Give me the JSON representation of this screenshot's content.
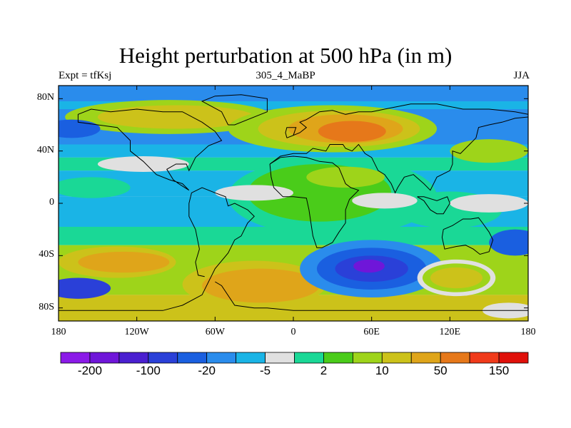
{
  "chart_data": {
    "type": "map-contour",
    "title": "Height perturbation at 500 hPa (in m)",
    "left_label": "Expt = tfKsj",
    "center_label": "305_4_MaBP",
    "right_label": "JJA",
    "lon_range": [
      -180,
      180
    ],
    "lat_range": [
      -90,
      90
    ],
    "x_ticks": [
      {
        "value": -180,
        "label": "180"
      },
      {
        "value": -120,
        "label": "120W"
      },
      {
        "value": -60,
        "label": "60W"
      },
      {
        "value": 0,
        "label": "0"
      },
      {
        "value": 60,
        "label": "60E"
      },
      {
        "value": 120,
        "label": "120E"
      },
      {
        "value": 180,
        "label": "180"
      }
    ],
    "y_ticks": [
      {
        "value": 80,
        "label": "80N"
      },
      {
        "value": 40,
        "label": "40N"
      },
      {
        "value": 0,
        "label": "0"
      },
      {
        "value": -40,
        "label": "40S"
      },
      {
        "value": -80,
        "label": "80S"
      }
    ],
    "colorbar": {
      "colors": [
        "#8b1ae8",
        "#6f16d9",
        "#4a1fd0",
        "#2a40d8",
        "#1a5fe0",
        "#2a8cec",
        "#1ab4e6",
        "#e0e0e0",
        "#1ad896",
        "#4acc1a",
        "#9ed41a",
        "#ccc21a",
        "#dfa51a",
        "#e6781a",
        "#f03a1a",
        "#e0100a"
      ],
      "labels": [
        {
          "after_index": 0,
          "text": "-200"
        },
        {
          "after_index": 2,
          "text": "-100"
        },
        {
          "after_index": 4,
          "text": "-20"
        },
        {
          "after_index": 6,
          "text": "-5"
        },
        {
          "after_index": 8,
          "text": "2"
        },
        {
          "after_index": 10,
          "text": "10"
        },
        {
          "after_index": 12,
          "text": "50"
        },
        {
          "after_index": 14,
          "text": "150"
        }
      ]
    },
    "background_color": "#e0e0e0",
    "anomaly_bands": [
      {
        "lat_from": 90,
        "lat_to": 78,
        "color": "#2a8cec"
      },
      {
        "lat_from": 78,
        "lat_to": 72,
        "color": "#1ab4e6"
      },
      {
        "lat_from": 72,
        "lat_to": 45,
        "color": "#2a8cec"
      },
      {
        "lat_from": 45,
        "lat_to": 35,
        "color": "#1ab4e6"
      },
      {
        "lat_from": 35,
        "lat_to": 25,
        "color": "#1ad896"
      },
      {
        "lat_from": 25,
        "lat_to": 5,
        "color": "#1ab4e6"
      },
      {
        "lat_from": 5,
        "lat_to": -18,
        "color": "#1ab4e6"
      },
      {
        "lat_from": -18,
        "lat_to": -32,
        "color": "#1ad896"
      },
      {
        "lat_from": -32,
        "lat_to": -70,
        "color": "#9ed41a"
      },
      {
        "lat_from": -70,
        "lat_to": -90,
        "color": "#ccc21a"
      }
    ],
    "anomaly_blobs": [
      {
        "lon": -95,
        "lat": 66,
        "rlon": 80,
        "rlat": 13,
        "color": "#9ed41a"
      },
      {
        "lon": -90,
        "lat": 66,
        "rlon": 60,
        "rlat": 9,
        "color": "#ccc21a"
      },
      {
        "lon": 30,
        "lat": 57,
        "rlon": 80,
        "rlat": 18,
        "color": "#9ed41a"
      },
      {
        "lon": 35,
        "lat": 57,
        "rlon": 62,
        "rlat": 14,
        "color": "#ccc21a"
      },
      {
        "lon": 40,
        "lat": 57,
        "rlon": 44,
        "rlat": 11,
        "color": "#dfa51a"
      },
      {
        "lon": 45,
        "lat": 55,
        "rlon": 26,
        "rlat": 8,
        "color": "#e6781a"
      },
      {
        "lon": 150,
        "lat": 40,
        "rlon": 30,
        "rlat": 9,
        "color": "#9ed41a"
      },
      {
        "lon": -155,
        "lat": 12,
        "rlon": 30,
        "rlat": 8,
        "color": "#1ad896"
      },
      {
        "lon": 30,
        "lat": 5,
        "rlon": 80,
        "rlat": 30,
        "color": "#1ad896"
      },
      {
        "lon": 20,
        "lat": 8,
        "rlon": 55,
        "rlat": 22,
        "color": "#4acc1a"
      },
      {
        "lon": 40,
        "lat": 20,
        "rlon": 30,
        "rlat": 8,
        "color": "#9ed41a"
      },
      {
        "lon": 120,
        "lat": -5,
        "rlon": 40,
        "rlat": 14,
        "color": "#1ad896"
      },
      {
        "lon": -135,
        "lat": -45,
        "rlon": 45,
        "rlat": 12,
        "color": "#ccc21a"
      },
      {
        "lon": -130,
        "lat": -45,
        "rlon": 35,
        "rlat": 8,
        "color": "#dfa51a"
      },
      {
        "lon": -30,
        "lat": -62,
        "rlon": 55,
        "rlat": 18,
        "color": "#ccc21a"
      },
      {
        "lon": -25,
        "lat": -63,
        "rlon": 45,
        "rlat": 13,
        "color": "#dfa51a"
      },
      {
        "lon": 60,
        "lat": -50,
        "rlon": 55,
        "rlat": 22,
        "color": "#2a8cec"
      },
      {
        "lon": 60,
        "lat": -50,
        "rlon": 42,
        "rlat": 16,
        "color": "#1a5fe0"
      },
      {
        "lon": 60,
        "lat": -50,
        "rlon": 28,
        "rlat": 10,
        "color": "#2a40d8"
      },
      {
        "lon": 58,
        "lat": -48,
        "rlon": 12,
        "rlat": 5,
        "color": "#6f16d9"
      },
      {
        "lon": 125,
        "lat": -57,
        "rlon": 30,
        "rlat": 14,
        "color": "#e0e0e0"
      },
      {
        "lon": 125,
        "lat": -57,
        "rlon": 26,
        "rlat": 11,
        "color": "#9ed41a"
      },
      {
        "lon": 125,
        "lat": -57,
        "rlon": 20,
        "rlat": 8,
        "color": "#ccc21a"
      },
      {
        "lon": 170,
        "lat": -30,
        "rlon": 20,
        "rlat": 10,
        "color": "#1a5fe0"
      },
      {
        "lon": -165,
        "lat": -65,
        "rlon": 25,
        "rlat": 8,
        "color": "#2a40d8"
      },
      {
        "lon": -170,
        "lat": 57,
        "rlon": 22,
        "rlat": 7,
        "color": "#1a5fe0"
      },
      {
        "lon": -115,
        "lat": 30,
        "rlon": 35,
        "rlat": 6,
        "color": "#e0e0e0"
      },
      {
        "lon": -30,
        "lat": 8,
        "rlon": 30,
        "rlat": 6,
        "color": "#e0e0e0"
      },
      {
        "lon": 70,
        "lat": 2,
        "rlon": 25,
        "rlat": 6,
        "color": "#e0e0e0"
      },
      {
        "lon": 150,
        "lat": 0,
        "rlon": 30,
        "rlat": 7,
        "color": "#e0e0e0"
      },
      {
        "lon": 165,
        "lat": -82,
        "rlon": 20,
        "rlat": 6,
        "color": "#e0e0e0"
      }
    ],
    "coastlines": [
      [
        [
          -180,
          -82
        ],
        [
          -100,
          -82
        ],
        [
          -85,
          -78
        ],
        [
          -70,
          -70
        ],
        [
          -60,
          -50
        ],
        [
          -50,
          -38
        ],
        [
          -45,
          -28
        ],
        [
          -40,
          -25
        ],
        [
          -35,
          -15
        ],
        [
          -30,
          -10
        ],
        [
          -35,
          -5
        ],
        [
          -45,
          0
        ],
        [
          -50,
          -2
        ],
        [
          -52,
          5
        ],
        [
          -60,
          8
        ],
        [
          -70,
          12
        ],
        [
          -78,
          8
        ],
        [
          -80,
          0
        ],
        [
          -80,
          -10
        ],
        [
          -75,
          -20
        ],
        [
          -72,
          -35
        ],
        [
          -75,
          -45
        ],
        [
          -73,
          -55
        ],
        [
          -68,
          -56
        ]
      ],
      [
        [
          -60,
          -60
        ],
        [
          -55,
          -63
        ],
        [
          -45,
          -78
        ],
        [
          -30,
          -80
        ],
        [
          -20,
          -80
        ],
        [
          0,
          -82
        ],
        [
          40,
          -82
        ],
        [
          80,
          -82
        ],
        [
          120,
          -82
        ],
        [
          160,
          -82
        ],
        [
          180,
          -82
        ]
      ],
      [
        [
          -80,
          10
        ],
        [
          -85,
          15
        ],
        [
          -95,
          18
        ],
        [
          -105,
          22
        ],
        [
          -115,
          32
        ],
        [
          -125,
          40
        ],
        [
          -125,
          48
        ],
        [
          -135,
          58
        ],
        [
          -150,
          60
        ],
        [
          -165,
          62
        ],
        [
          -165,
          68
        ],
        [
          -155,
          72
        ],
        [
          -140,
          70
        ],
        [
          -120,
          72
        ],
        [
          -100,
          70
        ],
        [
          -85,
          70
        ],
        [
          -70,
          62
        ],
        [
          -60,
          55
        ],
        [
          -55,
          48
        ],
        [
          -65,
          44
        ],
        [
          -75,
          35
        ],
        [
          -80,
          25
        ],
        [
          -82,
          30
        ],
        [
          -90,
          30
        ],
        [
          -97,
          26
        ],
        [
          -92,
          18
        ],
        [
          -88,
          15
        ],
        [
          -80,
          10
        ]
      ],
      [
        [
          -18,
          30
        ],
        [
          -10,
          36
        ],
        [
          0,
          38
        ],
        [
          10,
          38
        ],
        [
          15,
          42
        ],
        [
          25,
          40
        ],
        [
          28,
          45
        ],
        [
          38,
          45
        ],
        [
          40,
          42
        ],
        [
          45,
          40
        ],
        [
          50,
          45
        ],
        [
          55,
          38
        ],
        [
          60,
          35
        ],
        [
          65,
          25
        ],
        [
          70,
          22
        ],
        [
          75,
          15
        ],
        [
          78,
          8
        ],
        [
          80,
          12
        ],
        [
          85,
          20
        ],
        [
          92,
          22
        ],
        [
          100,
          15
        ],
        [
          105,
          10
        ],
        [
          110,
          20
        ],
        [
          120,
          25
        ],
        [
          122,
          30
        ],
        [
          122,
          40
        ],
        [
          128,
          38
        ],
        [
          135,
          45
        ],
        [
          140,
          50
        ],
        [
          142,
          58
        ],
        [
          150,
          60
        ],
        [
          160,
          62
        ],
        [
          170,
          65
        ],
        [
          180,
          66
        ]
      ],
      [
        [
          -18,
          30
        ],
        [
          -17,
          20
        ],
        [
          -15,
          12
        ],
        [
          -8,
          5
        ],
        [
          0,
          5
        ],
        [
          10,
          4
        ],
        [
          12,
          -5
        ],
        [
          13,
          -12
        ],
        [
          15,
          -25
        ],
        [
          18,
          -34
        ],
        [
          22,
          -34
        ],
        [
          30,
          -30
        ],
        [
          35,
          -22
        ],
        [
          40,
          -15
        ],
        [
          40,
          -5
        ],
        [
          43,
          3
        ],
        [
          50,
          10
        ],
        [
          44,
          12
        ],
        [
          40,
          15
        ],
        [
          35,
          27
        ],
        [
          30,
          31
        ],
        [
          20,
          32
        ],
        [
          10,
          35
        ],
        [
          0,
          36
        ],
        [
          -10,
          35
        ],
        [
          -18,
          30
        ]
      ],
      [
        [
          0,
          52
        ],
        [
          5,
          54
        ],
        [
          10,
          58
        ],
        [
          5,
          62
        ],
        [
          10,
          64
        ],
        [
          20,
          70
        ],
        [
          30,
          71
        ],
        [
          40,
          68
        ],
        [
          50,
          70
        ],
        [
          60,
          70
        ],
        [
          70,
          72
        ],
        [
          90,
          76
        ],
        [
          110,
          76
        ],
        [
          130,
          72
        ],
        [
          150,
          72
        ],
        [
          170,
          70
        ],
        [
          180,
          68
        ]
      ],
      [
        [
          115,
          -20
        ],
        [
          114,
          -26
        ],
        [
          116,
          -35
        ],
        [
          125,
          -33
        ],
        [
          132,
          -32
        ],
        [
          138,
          -35
        ],
        [
          143,
          -39
        ],
        [
          150,
          -37
        ],
        [
          153,
          -28
        ],
        [
          150,
          -22
        ],
        [
          145,
          -15
        ],
        [
          142,
          -11
        ],
        [
          136,
          -12
        ],
        [
          130,
          -12
        ],
        [
          122,
          -17
        ],
        [
          115,
          -20
        ]
      ],
      [
        [
          95,
          5
        ],
        [
          100,
          2
        ],
        [
          105,
          -5
        ],
        [
          110,
          -8
        ],
        [
          115,
          -8
        ],
        [
          120,
          0
        ],
        [
          118,
          5
        ],
        [
          110,
          2
        ],
        [
          100,
          5
        ],
        [
          95,
          5
        ]
      ],
      [
        [
          -5,
          50
        ],
        [
          0,
          52
        ],
        [
          2,
          58
        ],
        [
          -5,
          58
        ],
        [
          -6,
          54
        ],
        [
          -5,
          50
        ]
      ],
      [
        [
          -50,
          60
        ],
        [
          -45,
          60
        ],
        [
          -20,
          70
        ],
        [
          -20,
          80
        ],
        [
          -40,
          83
        ],
        [
          -60,
          82
        ],
        [
          -70,
          78
        ],
        [
          -55,
          70
        ],
        [
          -50,
          60
        ]
      ]
    ]
  }
}
